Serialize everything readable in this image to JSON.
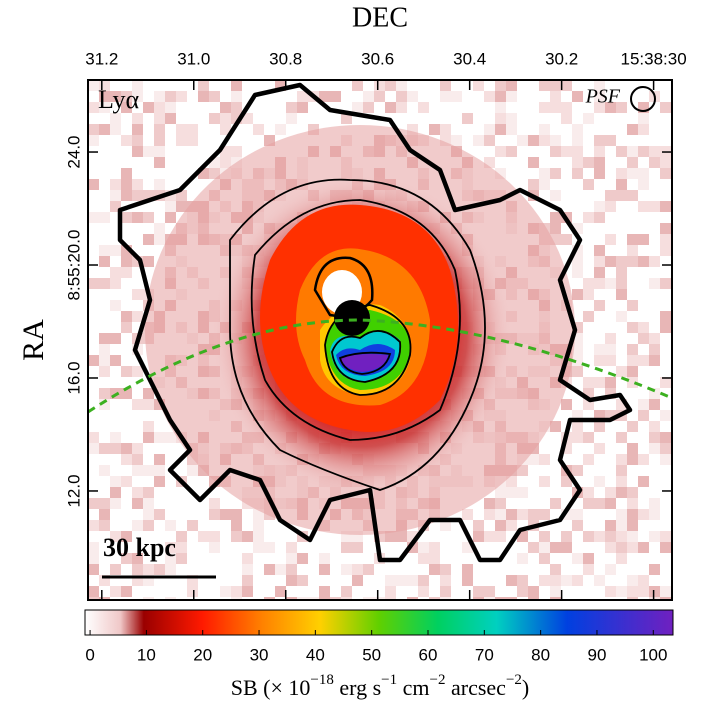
{
  "chart_data": {
    "type": "image",
    "x_label": "DEC",
    "y_label": "RA",
    "xlim": [
      31.23,
      29.96
    ],
    "xticks": [
      31.2,
      {
        "value": 31.0,
        "label": "31.0"
      },
      30.8,
      30.6,
      30.4,
      30.2,
      {
        "value": 30.0,
        "label": "15:38:30"
      }
    ],
    "ylim": [
      8.14,
      26.55
    ],
    "yticks": [
      {
        "value": 24,
        "label": "24.0"
      },
      {
        "value": 20,
        "label": "8:55:20.0"
      },
      {
        "value": 16,
        "label": "16.0"
      },
      {
        "value": 12,
        "label": "12.0"
      }
    ],
    "line_label": "Lyα",
    "psf_label": "PSF",
    "scale_label": "30 kpc",
    "clim": [
      -0.9,
      103.5
    ],
    "cticks": [
      0,
      10,
      20,
      30,
      40,
      50,
      60,
      70,
      80,
      90,
      100
    ],
    "colorbar_label": [
      "SB (× 10",
      "−18",
      " erg s",
      "−1",
      " cm",
      "−2",
      " arcsec",
      "−2",
      ")"
    ]
  }
}
